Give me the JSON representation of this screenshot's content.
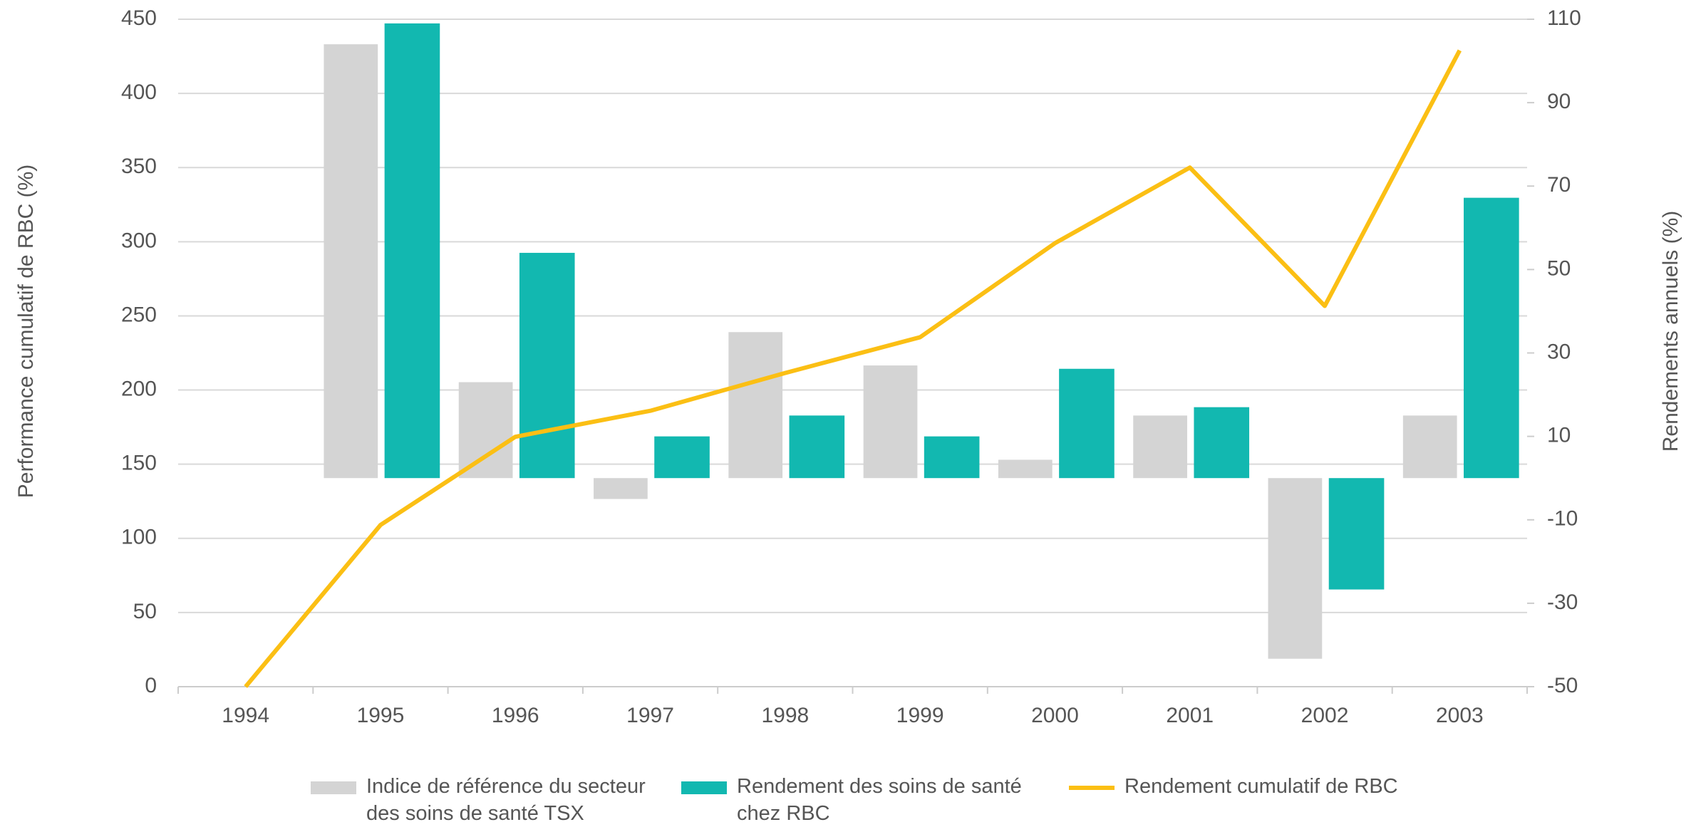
{
  "chart_data": {
    "type": "bar",
    "categories": [
      "1994",
      "1995",
      "1996",
      "1997",
      "1998",
      "1999",
      "2000",
      "2001",
      "2002",
      "2003"
    ],
    "series": [
      {
        "name": "Indice de référence du secteur des soins de santé TSX",
        "color": "#d4d4d4",
        "axis": "y2",
        "values": [
          null,
          104,
          23,
          -5,
          35,
          27,
          4.4,
          15,
          -43.3,
          15
        ]
      },
      {
        "name": "Rendement des soins de santé chez RBC",
        "color": "#12b8b0",
        "axis": "y2",
        "values": [
          null,
          109,
          54,
          10,
          15,
          10,
          26.2,
          17,
          -26.7,
          67.2
        ]
      },
      {
        "name": "Rendement cumulatif de RBC",
        "color": "#fbbf14",
        "type": "line",
        "values": [
          0,
          109,
          168.5,
          186,
          211.5,
          235.6,
          299,
          350,
          256.7,
          429
        ]
      }
    ],
    "ylabel": "Performance cumulatif de RBC (%)",
    "y2label": "Rendements annuels (%)",
    "ylim": [
      0,
      450
    ],
    "yticks": [
      0,
      50,
      100,
      150,
      200,
      250,
      300,
      350,
      400,
      450
    ],
    "y2lim": [
      -50,
      110
    ],
    "y2ticks": [
      -50,
      -30,
      -10,
      10,
      30,
      50,
      70,
      90,
      110
    ],
    "grid": true
  }
}
